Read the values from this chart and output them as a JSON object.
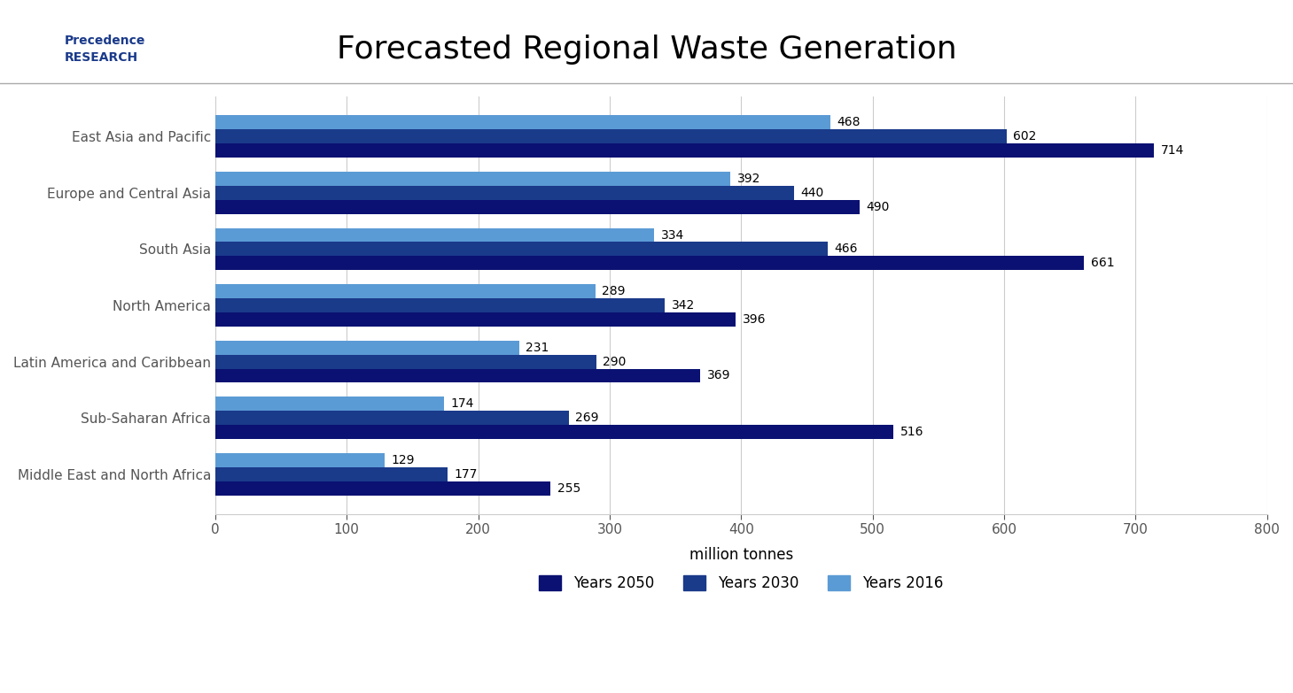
{
  "title": "Forecasted Regional Waste Generation",
  "xlabel": "million tonnes",
  "categories": [
    "East Asia and Pacific",
    "Europe and Central Asia",
    "South Asia",
    "North America",
    "Latin America and Caribbean",
    "Sub-Saharan Africa",
    "Middle East and North Africa"
  ],
  "series": {
    "Years 2050": [
      714,
      490,
      661,
      396,
      369,
      516,
      255
    ],
    "Years 2030": [
      602,
      440,
      466,
      342,
      290,
      269,
      177
    ],
    "Years 2016": [
      468,
      392,
      334,
      289,
      231,
      174,
      129
    ]
  },
  "colors": {
    "Years 2050": "#0a1172",
    "Years 2030": "#1a3a8a",
    "Years 2016": "#5b9bd5"
  },
  "xlim": [
    0,
    800
  ],
  "xticks": [
    0,
    100,
    200,
    300,
    400,
    500,
    600,
    700,
    800
  ],
  "bar_height": 0.25,
  "background_color": "#ffffff",
  "title_fontsize": 26,
  "label_fontsize": 11,
  "tick_fontsize": 11,
  "value_fontsize": 10,
  "legend_fontsize": 12,
  "border_color": "#cccccc"
}
